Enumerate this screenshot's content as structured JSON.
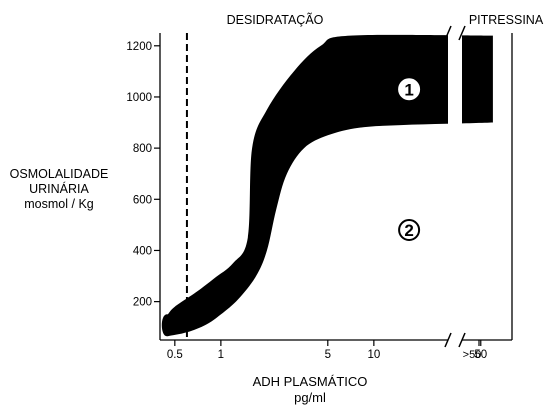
{
  "chart_data": {
    "type": "area",
    "top_labels": {
      "left": "DESIDRATAÇÃO",
      "right": "PITRESSINA"
    },
    "ylabel": {
      "line1": "OSMOLALIDADE",
      "line2": "URINÁRIA",
      "line3": "mosmol / Kg"
    },
    "xlabel": {
      "line1": "ADH PLASMÁTICO",
      "line2": "pg/ml"
    },
    "x_scale": "log",
    "xlim": [
      0.4,
      80
    ],
    "ylim": [
      50,
      1250
    ],
    "x_ticks": [
      {
        "value": 0.5,
        "label": "0.5"
      },
      {
        "value": 1,
        "label": "1"
      },
      {
        "value": 5,
        "label": "5"
      },
      {
        "value": 10,
        "label": "10"
      },
      {
        "value": 50,
        "label": "50"
      }
    ],
    "x_break_label": ">50",
    "y_ticks": [
      200,
      400,
      600,
      800,
      1000,
      1200
    ],
    "dashed_reference_x": 0.6,
    "band": {
      "lower_edge": [
        [
          0.45,
          65
        ],
        [
          0.6,
          80
        ],
        [
          0.8,
          110
        ],
        [
          1.0,
          150
        ],
        [
          1.3,
          210
        ],
        [
          1.7,
          300
        ],
        [
          2.0,
          400
        ],
        [
          2.3,
          560
        ],
        [
          2.7,
          700
        ],
        [
          3.5,
          800
        ],
        [
          5,
          850
        ],
        [
          8,
          880
        ],
        [
          15,
          890
        ],
        [
          30,
          895
        ],
        [
          60,
          900
        ]
      ],
      "upper_edge": [
        [
          0.45,
          150
        ],
        [
          0.5,
          180
        ],
        [
          0.7,
          240
        ],
        [
          0.9,
          290
        ],
        [
          1.2,
          350
        ],
        [
          1.5,
          450
        ],
        [
          1.6,
          800
        ],
        [
          2.0,
          950
        ],
        [
          3.0,
          1100
        ],
        [
          4.5,
          1200
        ],
        [
          7,
          1240
        ],
        [
          60,
          1240
        ]
      ]
    },
    "region_labels": [
      {
        "text": "1",
        "x": 17,
        "y": 1030
      },
      {
        "text": "2",
        "x": 17,
        "y": 480
      }
    ]
  }
}
